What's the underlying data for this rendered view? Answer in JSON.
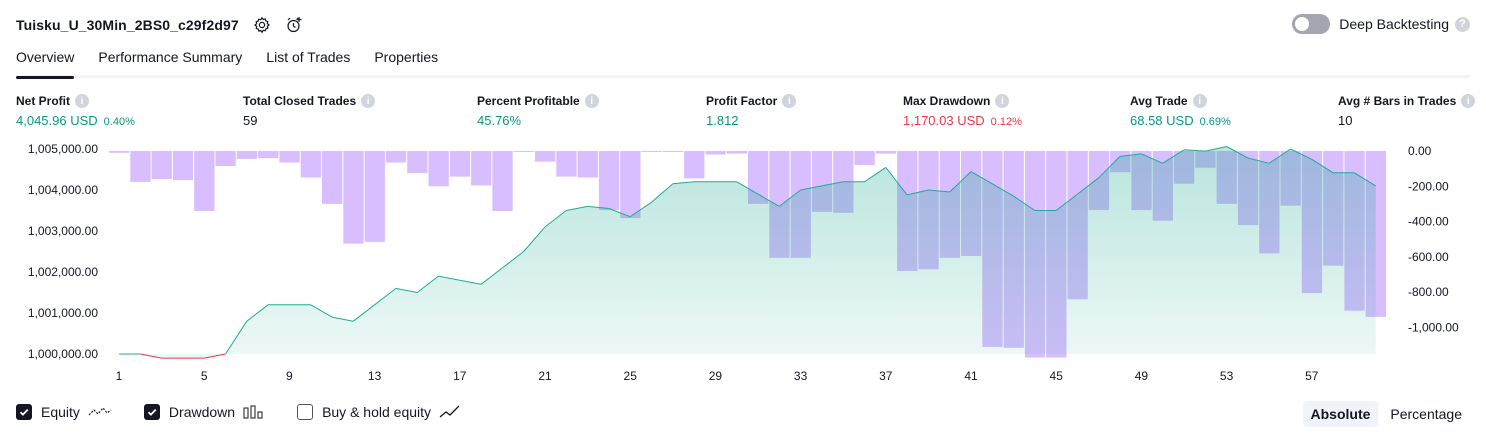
{
  "header": {
    "strategy_name": "Tuisku_U_30Min_2BS0_c29f2d97",
    "settings_icon": "gear-icon",
    "alert_icon": "add-alert-icon",
    "deep_backtesting_label": "Deep Backtesting",
    "deep_backtesting_enabled": false
  },
  "tabs": [
    {
      "label": "Overview",
      "active": true
    },
    {
      "label": "Performance Summary",
      "active": false
    },
    {
      "label": "List of Trades",
      "active": false
    },
    {
      "label": "Properties",
      "active": false
    }
  ],
  "metrics": {
    "net_profit": {
      "label": "Net Profit",
      "value": "4,045.96 USD",
      "pct": "0.40%"
    },
    "total_closed_trades": {
      "label": "Total Closed Trades",
      "value": "59"
    },
    "percent_profitable": {
      "label": "Percent Profitable",
      "value": "45.76%"
    },
    "profit_factor": {
      "label": "Profit Factor",
      "value": "1.812"
    },
    "max_drawdown": {
      "label": "Max Drawdown",
      "value": "1,170.03 USD",
      "pct": "0.12%"
    },
    "avg_trade": {
      "label": "Avg Trade",
      "value": "68.58 USD",
      "pct": "0.69%"
    },
    "avg_bars": {
      "label": "Avg # Bars in Trades",
      "value": "10"
    }
  },
  "colors": {
    "positive": "#089981",
    "negative": "#f23645",
    "equity_line": "#22ab94",
    "equity_below": "#f23645",
    "drawdown_bar": "#d1b3ff",
    "accent_dark": "#131722"
  },
  "legend": {
    "equity": {
      "label": "Equity",
      "checked": true
    },
    "drawdown": {
      "label": "Drawdown",
      "checked": true
    },
    "buy_hold": {
      "label": "Buy & hold equity",
      "checked": false
    }
  },
  "modes": {
    "absolute": "Absolute",
    "percentage": "Percentage",
    "active": "absolute"
  },
  "chart_data": {
    "type": "area",
    "x_ticks": [
      "1",
      "5",
      "9",
      "13",
      "17",
      "21",
      "25",
      "29",
      "33",
      "37",
      "41",
      "45",
      "49",
      "53",
      "57"
    ],
    "left_ticks": [
      "1,005,000.00",
      "1,004,000.00",
      "1,003,000.00",
      "1,002,000.00",
      "1,001,000.00",
      "1,000,000.00"
    ],
    "right_ticks": [
      "0.00",
      "-200.00",
      "-400.00",
      "-600.00",
      "-800.00",
      "-1,000.00"
    ],
    "left_ylim": [
      1000000,
      1005000
    ],
    "right_ylim": [
      -1170,
      0
    ],
    "series": [
      {
        "name": "Equity",
        "axis": "left",
        "x": [
          1,
          2,
          3,
          4,
          5,
          6,
          7,
          8,
          9,
          10,
          11,
          12,
          13,
          14,
          15,
          16,
          17,
          18,
          19,
          20,
          21,
          22,
          23,
          24,
          25,
          26,
          27,
          28,
          29,
          30,
          31,
          32,
          33,
          34,
          35,
          36,
          37,
          38,
          39,
          40,
          41,
          42,
          43,
          44,
          45,
          46,
          47,
          48,
          49,
          50,
          51,
          52,
          53,
          54,
          55,
          56,
          57,
          58,
          59,
          60
        ],
        "values": [
          1000000,
          1000000,
          999900,
          999900,
          999900,
          1000000,
          1000800,
          1001200,
          1001200,
          1001200,
          1000900,
          1000800,
          1001200,
          1001600,
          1001500,
          1001900,
          1001800,
          1001700,
          1002100,
          1002500,
          1003100,
          1003500,
          1003600,
          1003550,
          1003350,
          1003700,
          1004150,
          1004200,
          1004200,
          1004200,
          1003900,
          1003600,
          1004000,
          1004100,
          1004200,
          1004200,
          1004550,
          1003880,
          1004000,
          1003950,
          1004450,
          1004150,
          1003850,
          1003500,
          1003500,
          1003900,
          1004300,
          1004820,
          1004880,
          1004650,
          1004980,
          1004950,
          1005060,
          1004780,
          1004650,
          1005000,
          1004750,
          1004420,
          1004420,
          1004100
        ]
      },
      {
        "name": "Drawdown",
        "axis": "right",
        "x": [
          1,
          2,
          3,
          4,
          5,
          6,
          7,
          8,
          9,
          10,
          11,
          12,
          13,
          14,
          15,
          16,
          17,
          18,
          19,
          20,
          21,
          22,
          23,
          24,
          25,
          26,
          27,
          28,
          29,
          30,
          31,
          32,
          33,
          34,
          35,
          36,
          37,
          38,
          39,
          40,
          41,
          42,
          43,
          44,
          45,
          46,
          47,
          48,
          49,
          50,
          51,
          52,
          53,
          54,
          55,
          56,
          57,
          58,
          59,
          60
        ],
        "values": [
          -10,
          -175,
          -160,
          -165,
          -340,
          -85,
          -45,
          -40,
          -65,
          -150,
          -300,
          -525,
          -515,
          -65,
          -125,
          -200,
          -145,
          -195,
          -340,
          0,
          -60,
          -145,
          -150,
          -335,
          -380,
          0,
          0,
          -155,
          -20,
          -15,
          -300,
          -605,
          -605,
          -345,
          -350,
          -80,
          -15,
          -680,
          -670,
          -605,
          -595,
          -1110,
          -1115,
          -1170,
          -1170,
          -840,
          -335,
          -120,
          -335,
          -395,
          -185,
          -95,
          -300,
          -420,
          -580,
          -310,
          -805,
          -650,
          -905,
          -940
        ]
      }
    ]
  }
}
